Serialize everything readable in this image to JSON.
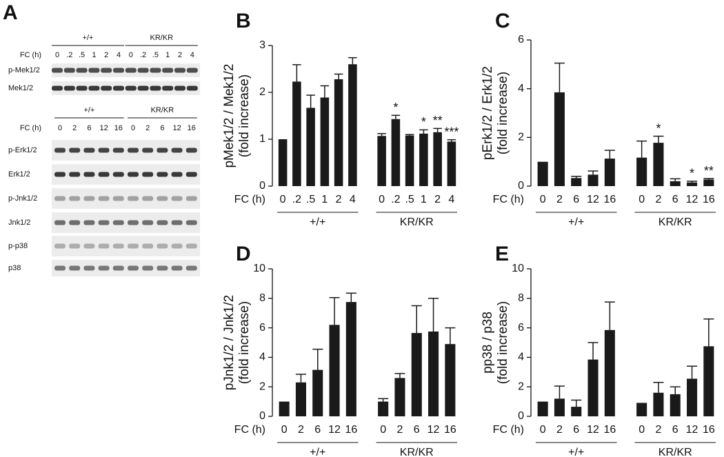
{
  "panel_a": {
    "letter": "A",
    "block1": {
      "groups": [
        "+/+",
        "KR/KR"
      ],
      "xlabel": "FC (h)",
      "lanes": [
        "0",
        ".2",
        ".5",
        "1",
        "2",
        "4",
        "0",
        ".2",
        ".5",
        "1",
        "2",
        "4"
      ],
      "rows": [
        "p-Mek1/2",
        "Mek1/2"
      ]
    },
    "block2": {
      "groups": [
        "+/+",
        "KR/KR"
      ],
      "xlabel": "FC (h)",
      "lanes": [
        "0",
        "2",
        "6",
        "12",
        "16",
        "0",
        "2",
        "6",
        "12",
        "16"
      ],
      "rows": [
        "p-Erk1/2",
        "Erk1/2",
        "p-Jnk1/2",
        "Jnk1/2",
        "p-p38",
        "p38"
      ]
    }
  },
  "chart_data": [
    {
      "type": "bar",
      "panel": "B",
      "ylabel": [
        "pMek1/2 / Mek1/2",
        "(fold increase)"
      ],
      "xlabel": "FC (h)",
      "categories": [
        "0",
        ".2",
        ".5",
        "1",
        "2",
        "4"
      ],
      "ylim": [
        0,
        3
      ],
      "yticks": [
        0,
        1,
        2,
        3
      ],
      "series": [
        {
          "name": "+/+",
          "color": "#1a1a1a",
          "values": [
            1.0,
            2.23,
            1.67,
            1.89,
            2.28,
            2.6
          ],
          "errors": [
            null,
            0.36,
            0.27,
            0.25,
            0.11,
            0.14
          ],
          "annotations": [
            null,
            null,
            null,
            null,
            null,
            null
          ]
        },
        {
          "name": "KR/KR",
          "color": "#1a1a1a",
          "values": [
            1.07,
            1.43,
            1.08,
            1.12,
            1.15,
            0.95
          ],
          "errors": [
            0.05,
            0.08,
            0.02,
            0.08,
            0.08,
            0.04
          ],
          "annotations": [
            null,
            "*",
            null,
            "*",
            "**",
            "***"
          ]
        }
      ]
    },
    {
      "type": "bar",
      "panel": "C",
      "ylabel": [
        "pErk1/2 / Erk1/2",
        "(fold increase)"
      ],
      "xlabel": "FC (h)",
      "categories": [
        "0",
        "2",
        "6",
        "12",
        "16"
      ],
      "ylim": [
        0,
        6
      ],
      "yticks": [
        0,
        2,
        4,
        6
      ],
      "series": [
        {
          "name": "+/+",
          "color": "#1a1a1a",
          "values": [
            1.0,
            3.85,
            0.33,
            0.47,
            1.13
          ],
          "errors": [
            null,
            1.2,
            0.07,
            0.15,
            0.34
          ],
          "annotations": [
            null,
            null,
            null,
            null,
            null
          ]
        },
        {
          "name": "KR/KR",
          "color": "#1a1a1a",
          "values": [
            1.17,
            1.78,
            0.2,
            0.15,
            0.27
          ],
          "errors": [
            0.68,
            0.27,
            0.1,
            0.05,
            0.04
          ],
          "annotations": [
            null,
            "*",
            null,
            "*",
            "**"
          ]
        }
      ]
    },
    {
      "type": "bar",
      "panel": "D",
      "ylabel": [
        "pJnk1/2 / Jnk1/2",
        "(fold increase)"
      ],
      "xlabel": "FC (h)",
      "categories": [
        "0",
        "2",
        "6",
        "12",
        "16"
      ],
      "ylim": [
        0,
        10
      ],
      "yticks": [
        0,
        2,
        4,
        6,
        8,
        10
      ],
      "series": [
        {
          "name": "+/+",
          "color": "#1a1a1a",
          "values": [
            1.0,
            2.3,
            3.15,
            6.2,
            7.75
          ],
          "errors": [
            null,
            0.55,
            1.4,
            1.85,
            0.6
          ],
          "annotations": [
            null,
            null,
            null,
            null,
            null
          ]
        },
        {
          "name": "KR/KR",
          "color": "#1a1a1a",
          "values": [
            1.0,
            2.6,
            5.65,
            5.75,
            4.9
          ],
          "errors": [
            0.2,
            0.3,
            1.85,
            2.25,
            1.1
          ],
          "annotations": [
            null,
            null,
            null,
            null,
            null
          ]
        }
      ]
    },
    {
      "type": "bar",
      "panel": "E",
      "ylabel": [
        "pp38 / p38",
        "(fold increase)"
      ],
      "xlabel": "FC (h)",
      "categories": [
        "0",
        "2",
        "6",
        "12",
        "16"
      ],
      "ylim": [
        0,
        10
      ],
      "yticks": [
        0,
        2,
        4,
        6,
        8,
        10
      ],
      "series": [
        {
          "name": "+/+",
          "color": "#1a1a1a",
          "values": [
            1.0,
            1.2,
            0.65,
            3.85,
            5.85
          ],
          "errors": [
            null,
            0.85,
            0.45,
            1.15,
            1.9
          ],
          "annotations": [
            null,
            null,
            null,
            null,
            null
          ]
        },
        {
          "name": "KR/KR",
          "color": "#1a1a1a",
          "values": [
            0.85,
            1.6,
            1.5,
            2.55,
            4.75
          ],
          "errors": [
            0.03,
            0.7,
            0.5,
            0.85,
            1.85
          ],
          "annotations": [
            null,
            null,
            null,
            null,
            null
          ]
        }
      ]
    }
  ]
}
